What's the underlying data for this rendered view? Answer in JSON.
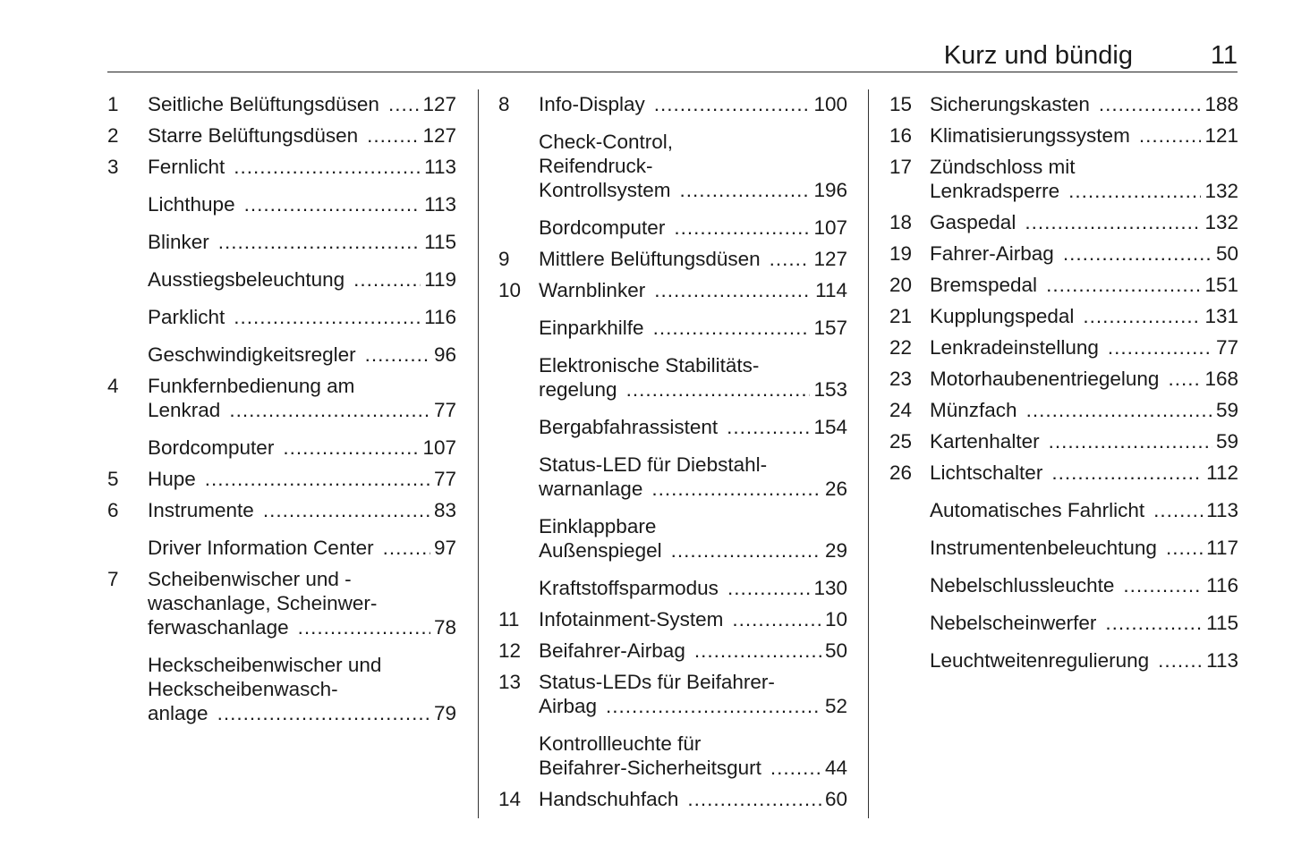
{
  "header": {
    "title": "Kurz und bündig",
    "page_number": "11"
  },
  "columns": [
    [
      {
        "num": "1",
        "lines": [
          "Seitliche Belüftungsdüsen"
        ],
        "page": "127"
      },
      {
        "num": "2",
        "lines": [
          "Starre Belüftungsdüsen"
        ],
        "page": "127"
      },
      {
        "num": "3",
        "lines": [
          "Fernlicht"
        ],
        "page": "113"
      },
      {
        "num": "",
        "lines": [
          "Lichthupe"
        ],
        "page": "113"
      },
      {
        "num": "",
        "lines": [
          "Blinker"
        ],
        "page": "115"
      },
      {
        "num": "",
        "lines": [
          "Ausstiegsbeleuchtung"
        ],
        "page": "119"
      },
      {
        "num": "",
        "lines": [
          "Parklicht"
        ],
        "page": "116"
      },
      {
        "num": "",
        "lines": [
          "Geschwindigkeitsregler"
        ],
        "page": "96"
      },
      {
        "num": "4",
        "lines": [
          "Funkfernbedienung am",
          "Lenkrad"
        ],
        "page": "77"
      },
      {
        "num": "",
        "lines": [
          "Bordcomputer"
        ],
        "page": "107"
      },
      {
        "num": "5",
        "lines": [
          "Hupe"
        ],
        "page": "77"
      },
      {
        "num": "6",
        "lines": [
          "Instrumente"
        ],
        "page": "83"
      },
      {
        "num": "",
        "lines": [
          "Driver Information Center"
        ],
        "page": "97"
      },
      {
        "num": "7",
        "lines": [
          "Scheibenwischer und -",
          "waschanlage, Scheinwer-",
          "ferwaschanlage"
        ],
        "page": "78"
      },
      {
        "num": "",
        "lines": [
          "Heckscheibenwischer und",
          "Heckscheibenwasch-",
          "anlage"
        ],
        "page": "79"
      }
    ],
    [
      {
        "num": "8",
        "lines": [
          "Info-Display"
        ],
        "page": "100"
      },
      {
        "num": "",
        "lines": [
          "Check-Control,",
          "Reifendruck-",
          "Kontrollsystem"
        ],
        "page": "196"
      },
      {
        "num": "",
        "lines": [
          "Bordcomputer"
        ],
        "page": "107"
      },
      {
        "num": "9",
        "lines": [
          "Mittlere Belüftungsdüsen"
        ],
        "page": "127"
      },
      {
        "num": "10",
        "lines": [
          "Warnblinker"
        ],
        "page": "114"
      },
      {
        "num": "",
        "lines": [
          "Einparkhilfe"
        ],
        "page": "157"
      },
      {
        "num": "",
        "lines": [
          "Elektronische Stabilitäts-",
          "regelung"
        ],
        "page": "153"
      },
      {
        "num": "",
        "lines": [
          "Bergabfahrassistent"
        ],
        "page": "154"
      },
      {
        "num": "",
        "lines": [
          "Status-LED für Diebstahl-",
          "warnanlage"
        ],
        "page": "26"
      },
      {
        "num": "",
        "lines": [
          "Einklappbare",
          "Außenspiegel"
        ],
        "page": "29"
      },
      {
        "num": "",
        "lines": [
          "Kraftstoffsparmodus"
        ],
        "page": "130"
      },
      {
        "num": "11",
        "lines": [
          "Infotainment-System"
        ],
        "page": "10"
      },
      {
        "num": "12",
        "lines": [
          "Beifahrer-Airbag"
        ],
        "page": "50"
      },
      {
        "num": "13",
        "lines": [
          "Status-LEDs für Beifahrer-",
          "Airbag"
        ],
        "page": "52"
      },
      {
        "num": "",
        "lines": [
          "Kontrollleuchte für",
          "Beifahrer-Sicherheitsgurt"
        ],
        "page": "44"
      },
      {
        "num": "14",
        "lines": [
          "Handschuhfach"
        ],
        "page": "60"
      }
    ],
    [
      {
        "num": "15",
        "lines": [
          "Sicherungskasten"
        ],
        "page": "188"
      },
      {
        "num": "16",
        "lines": [
          "Klimatisierungssystem"
        ],
        "page": "121"
      },
      {
        "num": "17",
        "lines": [
          "Zündschloss mit",
          "Lenkradsperre"
        ],
        "page": "132"
      },
      {
        "num": "18",
        "lines": [
          "Gaspedal"
        ],
        "page": "132"
      },
      {
        "num": "19",
        "lines": [
          "Fahrer-Airbag"
        ],
        "page": "50"
      },
      {
        "num": "20",
        "lines": [
          "Bremspedal"
        ],
        "page": "151"
      },
      {
        "num": "21",
        "lines": [
          "Kupplungspedal"
        ],
        "page": "131"
      },
      {
        "num": "22",
        "lines": [
          "Lenkradeinstellung"
        ],
        "page": "77"
      },
      {
        "num": "23",
        "lines": [
          "Motorhaubenentriegelung"
        ],
        "page": "168"
      },
      {
        "num": "24",
        "lines": [
          "Münzfach"
        ],
        "page": "59"
      },
      {
        "num": "25",
        "lines": [
          "Kartenhalter"
        ],
        "page": "59"
      },
      {
        "num": "26",
        "lines": [
          "Lichtschalter"
        ],
        "page": "112"
      },
      {
        "num": "",
        "lines": [
          "Automatisches Fahrlicht"
        ],
        "page": "113"
      },
      {
        "num": "",
        "lines": [
          "Instrumentenbeleuchtung"
        ],
        "page": "117"
      },
      {
        "num": "",
        "lines": [
          "Nebelschlussleuchte"
        ],
        "page": "116"
      },
      {
        "num": "",
        "lines": [
          "Nebelscheinwerfer"
        ],
        "page": "115"
      },
      {
        "num": "",
        "lines": [
          "Leuchtweitenregulierung"
        ],
        "page": "113"
      }
    ]
  ]
}
